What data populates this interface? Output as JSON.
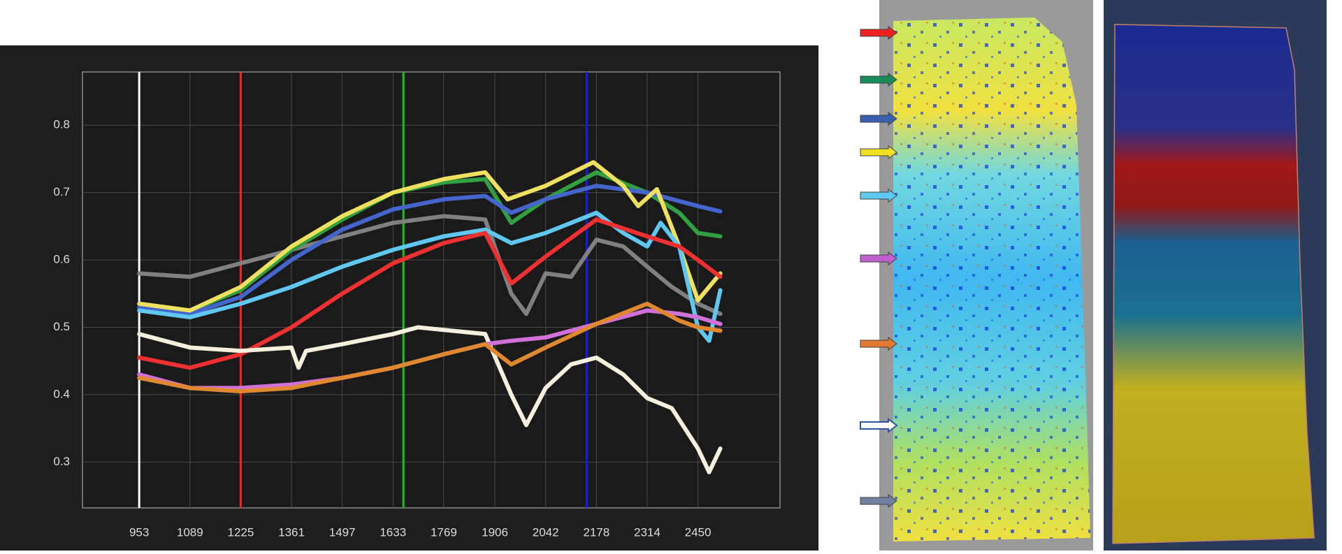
{
  "chart_data": {
    "type": "line",
    "xlim": [
      801,
      2670
    ],
    "ylim": [
      0.232,
      0.879
    ],
    "xticks": [
      953,
      1089,
      1225,
      1361,
      1497,
      1633,
      1769,
      1906,
      2042,
      2178,
      2314,
      2450
    ],
    "yticks": [
      0.3,
      0.4,
      0.5,
      0.6,
      0.7,
      0.8
    ],
    "grid": true,
    "markers": [
      {
        "x": 953,
        "color": "#ffffff"
      },
      {
        "x": 1225,
        "color": "#ff2020"
      },
      {
        "x": 1661,
        "color": "#20c020"
      },
      {
        "x": 2152,
        "color": "#1020e0"
      }
    ],
    "series": [
      {
        "color": "#808080",
        "x": [
          953,
          1089,
          1225,
          1361,
          1497,
          1633,
          1769,
          1880,
          1950,
          1990,
          2042,
          2110,
          2178,
          2250,
          2314,
          2380,
          2450,
          2510
        ],
        "values": [
          0.58,
          0.575,
          0.595,
          0.615,
          0.635,
          0.655,
          0.665,
          0.66,
          0.55,
          0.52,
          0.58,
          0.575,
          0.63,
          0.62,
          0.59,
          0.56,
          0.535,
          0.52
        ]
      },
      {
        "color": "#30a040",
        "x": [
          953,
          1089,
          1225,
          1361,
          1497,
          1633,
          1769,
          1880,
          1950,
          2042,
          2178,
          2314,
          2400,
          2450,
          2510
        ],
        "values": [
          0.535,
          0.525,
          0.555,
          0.615,
          0.66,
          0.7,
          0.715,
          0.72,
          0.655,
          0.69,
          0.73,
          0.7,
          0.67,
          0.64,
          0.635
        ]
      },
      {
        "color": "#4466cc",
        "x": [
          953,
          1089,
          1225,
          1361,
          1497,
          1633,
          1769,
          1880,
          1950,
          2042,
          2178,
          2314,
          2450,
          2510
        ],
        "values": [
          0.53,
          0.52,
          0.545,
          0.6,
          0.645,
          0.675,
          0.69,
          0.695,
          0.67,
          0.69,
          0.71,
          0.7,
          0.68,
          0.672
        ]
      },
      {
        "color": "#f0e060",
        "x": [
          953,
          1089,
          1225,
          1361,
          1497,
          1633,
          1769,
          1880,
          1940,
          2042,
          2170,
          2250,
          2290,
          2340,
          2400,
          2450,
          2510
        ],
        "values": [
          0.535,
          0.525,
          0.56,
          0.62,
          0.665,
          0.7,
          0.72,
          0.73,
          0.69,
          0.71,
          0.745,
          0.71,
          0.68,
          0.705,
          0.62,
          0.54,
          0.58
        ]
      },
      {
        "color": "#60c8f0",
        "x": [
          953,
          1089,
          1225,
          1361,
          1497,
          1633,
          1769,
          1880,
          1950,
          2042,
          2178,
          2250,
          2314,
          2350,
          2400,
          2450,
          2480,
          2510
        ],
        "values": [
          0.525,
          0.515,
          0.535,
          0.56,
          0.59,
          0.615,
          0.635,
          0.645,
          0.625,
          0.64,
          0.67,
          0.64,
          0.62,
          0.655,
          0.62,
          0.5,
          0.48,
          0.555
        ]
      },
      {
        "color": "#ee3030",
        "x": [
          953,
          1089,
          1225,
          1361,
          1497,
          1633,
          1769,
          1880,
          1950,
          2042,
          2178,
          2314,
          2400,
          2450,
          2510
        ],
        "values": [
          0.455,
          0.44,
          0.46,
          0.5,
          0.55,
          0.595,
          0.625,
          0.64,
          0.565,
          0.605,
          0.66,
          0.635,
          0.62,
          0.6,
          0.575
        ]
      },
      {
        "color": "#f5f0dc",
        "x": [
          953,
          1089,
          1225,
          1361,
          1380,
          1400,
          1497,
          1633,
          1700,
          1880,
          1950,
          1990,
          2042,
          2110,
          2178,
          2250,
          2314,
          2380,
          2450,
          2480,
          2510
        ],
        "values": [
          0.49,
          0.47,
          0.465,
          0.47,
          0.44,
          0.465,
          0.475,
          0.49,
          0.5,
          0.49,
          0.4,
          0.355,
          0.41,
          0.445,
          0.455,
          0.43,
          0.395,
          0.38,
          0.32,
          0.285,
          0.32
        ]
      },
      {
        "color": "#d070d8",
        "x": [
          953,
          1089,
          1225,
          1361,
          1497,
          1633,
          1769,
          1880,
          1950,
          2042,
          2178,
          2314,
          2400,
          2450,
          2510
        ],
        "values": [
          0.43,
          0.41,
          0.41,
          0.415,
          0.425,
          0.44,
          0.46,
          0.475,
          0.48,
          0.485,
          0.505,
          0.525,
          0.52,
          0.515,
          0.505
        ]
      },
      {
        "color": "#e08830",
        "x": [
          953,
          1089,
          1225,
          1361,
          1497,
          1633,
          1769,
          1880,
          1950,
          2042,
          2178,
          2314,
          2400,
          2450,
          2510
        ],
        "values": [
          0.425,
          0.41,
          0.405,
          0.41,
          0.425,
          0.44,
          0.46,
          0.475,
          0.445,
          0.47,
          0.505,
          0.535,
          0.51,
          0.5,
          0.495
        ]
      }
    ]
  }
}
